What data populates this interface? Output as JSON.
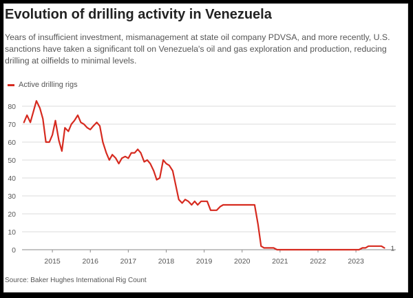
{
  "title": "Evolution of drilling activity in Venezuela",
  "subtitle": "Years of insufficient investment, mismanagement at state oil company PDVSA, and more recently, U.S. sanctions have taken a significant toll on Venezuela's oil and gas exploration and production, reducing drilling at oilfields to minimal levels.",
  "source": "Source: Baker Hughes International Rig Count",
  "colors": {
    "series": "#d62a1f",
    "grid": "#cfcfcf",
    "text": "#555555"
  },
  "chart_data": {
    "type": "line",
    "title": "Evolution of drilling activity in Venezuela",
    "xlabel": "",
    "ylabel": "",
    "grid": true,
    "legend_position": "top-left",
    "xlim": [
      2014.2,
      2024.05
    ],
    "ylim": [
      0,
      80
    ],
    "yticks": [
      0,
      10,
      20,
      30,
      40,
      50,
      60,
      70,
      80
    ],
    "xticks": [
      "2015",
      "2016",
      "2017",
      "2018",
      "2019",
      "2020",
      "2021",
      "2022",
      "2023"
    ],
    "end_label": "1",
    "series": [
      {
        "name": "Active drilling rigs",
        "x": [
          2014.25,
          2014.33,
          2014.42,
          2014.5,
          2014.58,
          2014.67,
          2014.75,
          2014.83,
          2014.92,
          2015.0,
          2015.08,
          2015.17,
          2015.25,
          2015.33,
          2015.42,
          2015.5,
          2015.58,
          2015.67,
          2015.75,
          2015.83,
          2015.92,
          2016.0,
          2016.08,
          2016.17,
          2016.25,
          2016.33,
          2016.42,
          2016.5,
          2016.58,
          2016.67,
          2016.75,
          2016.83,
          2016.92,
          2017.0,
          2017.08,
          2017.17,
          2017.25,
          2017.33,
          2017.42,
          2017.5,
          2017.58,
          2017.67,
          2017.75,
          2017.83,
          2017.92,
          2018.0,
          2018.08,
          2018.17,
          2018.25,
          2018.33,
          2018.42,
          2018.5,
          2018.58,
          2018.67,
          2018.75,
          2018.83,
          2018.92,
          2019.0,
          2019.08,
          2019.17,
          2019.25,
          2019.33,
          2019.42,
          2019.5,
          2019.58,
          2019.67,
          2019.75,
          2019.83,
          2019.92,
          2020.0,
          2020.08,
          2020.17,
          2020.25,
          2020.33,
          2020.42,
          2020.5,
          2020.58,
          2020.67,
          2020.75,
          2020.83,
          2020.92,
          2021.0,
          2021.5,
          2022.0,
          2022.5,
          2023.0,
          2023.08,
          2023.17,
          2023.25,
          2023.33,
          2023.42,
          2023.5,
          2023.58,
          2023.67,
          2023.75
        ],
        "values": [
          71,
          75,
          71,
          77,
          83,
          79,
          73,
          60,
          60,
          64,
          72,
          61,
          55,
          68,
          66,
          70,
          72,
          75,
          71,
          70,
          68,
          67,
          69,
          71,
          69,
          60,
          54,
          50,
          53,
          51,
          48,
          51,
          52,
          51,
          54,
          54,
          56,
          54,
          49,
          50,
          48,
          44,
          39,
          40,
          50,
          48,
          47,
          44,
          36,
          28,
          26,
          28,
          27,
          25,
          27,
          25,
          27,
          27,
          27,
          22,
          22,
          22,
          24,
          25,
          25,
          25,
          25,
          25,
          25,
          25,
          25,
          25,
          25,
          25,
          14,
          2,
          1,
          1,
          1,
          1,
          0,
          0,
          0,
          0,
          0,
          0,
          0,
          1,
          1,
          2,
          2,
          2,
          2,
          2,
          1
        ]
      }
    ]
  }
}
